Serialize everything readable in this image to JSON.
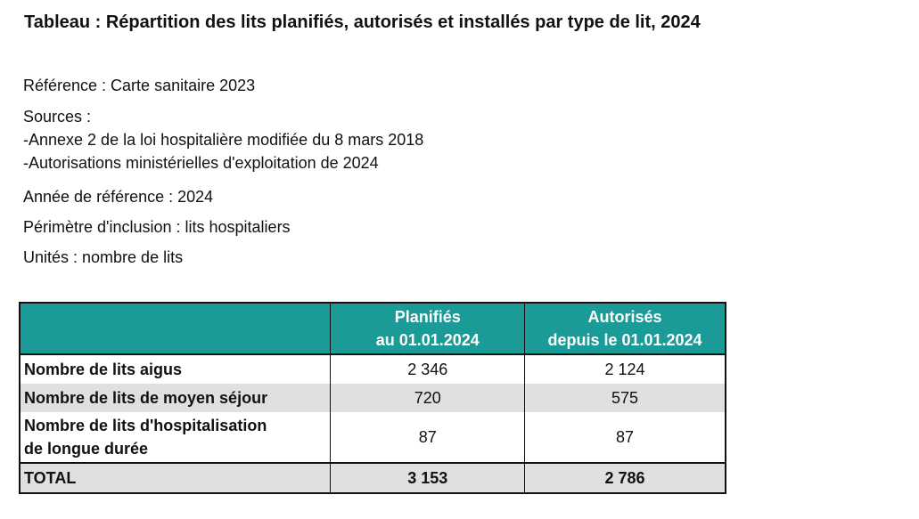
{
  "title": "Tableau : Répartition des lits planifiés, autorisés et installés par type de lit, 2024",
  "meta": {
    "reference": "Référence : Carte sanitaire 2023",
    "sources_label": "Sources :",
    "sources": [
      "-Annexe 2 de la loi hospitalière modifiée du 8 mars 2018",
      "-Autorisations ministérielles d'exploitation de 2024"
    ],
    "year": "Année de référence : 2024",
    "scope": "Périmètre d'inclusion : lits hospitaliers",
    "units": "Unités : nombre de lits"
  },
  "table": {
    "headers": [
      {
        "line1": "",
        "line2": ""
      },
      {
        "line1": "Planifiés",
        "line2": "au 01.01.2024"
      },
      {
        "line1": "Autorisés",
        "line2": "depuis le 01.01.2024"
      }
    ],
    "rows": [
      {
        "label_line1": "Nombre de lits aigus",
        "label_line2": "",
        "planifies": "2 346",
        "autorises": "2 124"
      },
      {
        "label_line1": "Nombre de lits de moyen séjour",
        "label_line2": "",
        "planifies": "720",
        "autorises": "575"
      },
      {
        "label_line1": "Nombre de lits d'hospitalisation",
        "label_line2": "de longue durée",
        "planifies": "87",
        "autorises": "87"
      }
    ],
    "total": {
      "label": "TOTAL",
      "planifies": "3 153",
      "autorises": "2 786"
    }
  },
  "colors": {
    "header_bg": "#1a9b98",
    "header_text": "#ffffff",
    "shaded_row": "#e0e0e0"
  }
}
